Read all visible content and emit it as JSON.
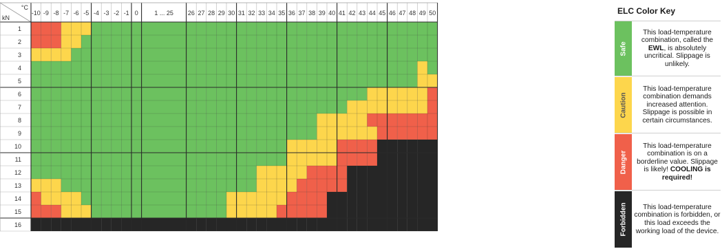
{
  "chart_data": {
    "type": "heatmap",
    "corner_top": "°C",
    "corner_bottom": "kN",
    "x_labels": [
      "-10",
      "-9",
      "-8",
      "-7",
      "-6",
      "-5",
      "-4",
      "-3",
      "-2",
      "-1",
      "0",
      "1 ... 25",
      "26",
      "27",
      "28",
      "29",
      "30",
      "31",
      "32",
      "33",
      "34",
      "35",
      "36",
      "37",
      "38",
      "39",
      "40",
      "41",
      "42",
      "43",
      "44",
      "45",
      "46",
      "47",
      "48",
      "49",
      "50"
    ],
    "y_labels": [
      "1",
      "2",
      "3",
      "4",
      "5",
      "6",
      "7",
      "8",
      "9",
      "10",
      "11",
      "12",
      "13",
      "14",
      "15",
      "16"
    ],
    "legend_codes": {
      "S": "Safe",
      "C": "Caution",
      "D": "Danger",
      "F": "Forbidden"
    },
    "rows": [
      [
        "D",
        "D",
        "D",
        "C",
        "C",
        "C",
        "S",
        "S",
        "S",
        "S",
        "S",
        "S",
        "S",
        "S",
        "S",
        "S",
        "S",
        "S",
        "S",
        "S",
        "S",
        "S",
        "S",
        "S",
        "S",
        "S",
        "S",
        "S",
        "S",
        "S",
        "S",
        "S",
        "S",
        "S",
        "S",
        "S",
        "S"
      ],
      [
        "D",
        "D",
        "D",
        "C",
        "C",
        "S",
        "S",
        "S",
        "S",
        "S",
        "S",
        "S",
        "S",
        "S",
        "S",
        "S",
        "S",
        "S",
        "S",
        "S",
        "S",
        "S",
        "S",
        "S",
        "S",
        "S",
        "S",
        "S",
        "S",
        "S",
        "S",
        "S",
        "S",
        "S",
        "S",
        "S",
        "S"
      ],
      [
        "C",
        "C",
        "C",
        "C",
        "S",
        "S",
        "S",
        "S",
        "S",
        "S",
        "S",
        "S",
        "S",
        "S",
        "S",
        "S",
        "S",
        "S",
        "S",
        "S",
        "S",
        "S",
        "S",
        "S",
        "S",
        "S",
        "S",
        "S",
        "S",
        "S",
        "S",
        "S",
        "S",
        "S",
        "S",
        "S",
        "S"
      ],
      [
        "S",
        "S",
        "S",
        "S",
        "S",
        "S",
        "S",
        "S",
        "S",
        "S",
        "S",
        "S",
        "S",
        "S",
        "S",
        "S",
        "S",
        "S",
        "S",
        "S",
        "S",
        "S",
        "S",
        "S",
        "S",
        "S",
        "S",
        "S",
        "S",
        "S",
        "S",
        "S",
        "S",
        "S",
        "S",
        "C",
        "S"
      ],
      [
        "S",
        "S",
        "S",
        "S",
        "S",
        "S",
        "S",
        "S",
        "S",
        "S",
        "S",
        "S",
        "S",
        "S",
        "S",
        "S",
        "S",
        "S",
        "S",
        "S",
        "S",
        "S",
        "S",
        "S",
        "S",
        "S",
        "S",
        "S",
        "S",
        "S",
        "S",
        "S",
        "S",
        "S",
        "S",
        "C",
        "C"
      ],
      [
        "S",
        "S",
        "S",
        "S",
        "S",
        "S",
        "S",
        "S",
        "S",
        "S",
        "S",
        "S",
        "S",
        "S",
        "S",
        "S",
        "S",
        "S",
        "S",
        "S",
        "S",
        "S",
        "S",
        "S",
        "S",
        "S",
        "S",
        "S",
        "S",
        "S",
        "C",
        "C",
        "C",
        "C",
        "C",
        "C",
        "D"
      ],
      [
        "S",
        "S",
        "S",
        "S",
        "S",
        "S",
        "S",
        "S",
        "S",
        "S",
        "S",
        "S",
        "S",
        "S",
        "S",
        "S",
        "S",
        "S",
        "S",
        "S",
        "S",
        "S",
        "S",
        "S",
        "S",
        "S",
        "S",
        "S",
        "C",
        "C",
        "C",
        "C",
        "C",
        "C",
        "C",
        "C",
        "D"
      ],
      [
        "S",
        "S",
        "S",
        "S",
        "S",
        "S",
        "S",
        "S",
        "S",
        "S",
        "S",
        "S",
        "S",
        "S",
        "S",
        "S",
        "S",
        "S",
        "S",
        "S",
        "S",
        "S",
        "S",
        "S",
        "S",
        "C",
        "C",
        "C",
        "C",
        "C",
        "D",
        "D",
        "D",
        "D",
        "D",
        "D",
        "D"
      ],
      [
        "S",
        "S",
        "S",
        "S",
        "S",
        "S",
        "S",
        "S",
        "S",
        "S",
        "S",
        "S",
        "S",
        "S",
        "S",
        "S",
        "S",
        "S",
        "S",
        "S",
        "S",
        "S",
        "S",
        "S",
        "S",
        "C",
        "C",
        "C",
        "C",
        "C",
        "C",
        "D",
        "D",
        "D",
        "D",
        "D",
        "D"
      ],
      [
        "S",
        "S",
        "S",
        "S",
        "S",
        "S",
        "S",
        "S",
        "S",
        "S",
        "S",
        "S",
        "S",
        "S",
        "S",
        "S",
        "S",
        "S",
        "S",
        "S",
        "S",
        "S",
        "C",
        "C",
        "C",
        "C",
        "C",
        "D",
        "D",
        "D",
        "D",
        "F",
        "F",
        "F",
        "F",
        "F",
        "F"
      ],
      [
        "S",
        "S",
        "S",
        "S",
        "S",
        "S",
        "S",
        "S",
        "S",
        "S",
        "S",
        "S",
        "S",
        "S",
        "S",
        "S",
        "S",
        "S",
        "S",
        "S",
        "S",
        "S",
        "C",
        "C",
        "C",
        "C",
        "C",
        "D",
        "D",
        "D",
        "D",
        "F",
        "F",
        "F",
        "F",
        "F",
        "F"
      ],
      [
        "S",
        "S",
        "S",
        "S",
        "S",
        "S",
        "S",
        "S",
        "S",
        "S",
        "S",
        "S",
        "S",
        "S",
        "S",
        "S",
        "S",
        "S",
        "S",
        "C",
        "C",
        "C",
        "C",
        "C",
        "D",
        "D",
        "D",
        "D",
        "F",
        "F",
        "F",
        "F",
        "F",
        "F",
        "F",
        "F",
        "F"
      ],
      [
        "C",
        "C",
        "C",
        "S",
        "S",
        "S",
        "S",
        "S",
        "S",
        "S",
        "S",
        "S",
        "S",
        "S",
        "S",
        "S",
        "S",
        "S",
        "S",
        "C",
        "C",
        "C",
        "C",
        "D",
        "D",
        "D",
        "D",
        "D",
        "F",
        "F",
        "F",
        "F",
        "F",
        "F",
        "F",
        "F",
        "F"
      ],
      [
        "D",
        "C",
        "C",
        "C",
        "C",
        "S",
        "S",
        "S",
        "S",
        "S",
        "S",
        "S",
        "S",
        "S",
        "S",
        "S",
        "C",
        "C",
        "C",
        "C",
        "C",
        "C",
        "D",
        "D",
        "D",
        "D",
        "F",
        "F",
        "F",
        "F",
        "F",
        "F",
        "F",
        "F",
        "F",
        "F",
        "F"
      ],
      [
        "D",
        "D",
        "D",
        "C",
        "C",
        "C",
        "S",
        "S",
        "S",
        "S",
        "S",
        "S",
        "S",
        "S",
        "S",
        "S",
        "C",
        "C",
        "C",
        "C",
        "C",
        "D",
        "D",
        "D",
        "D",
        "D",
        "F",
        "F",
        "F",
        "F",
        "F",
        "F",
        "F",
        "F",
        "F",
        "F",
        "F"
      ],
      [
        "F",
        "F",
        "F",
        "F",
        "F",
        "F",
        "F",
        "F",
        "F",
        "F",
        "F",
        "F",
        "F",
        "F",
        "F",
        "F",
        "F",
        "F",
        "F",
        "F",
        "F",
        "F",
        "F",
        "F",
        "F",
        "F",
        "F",
        "F",
        "F",
        "F",
        "F",
        "F",
        "F",
        "F",
        "F",
        "F",
        "F"
      ]
    ],
    "colors": {
      "S": "#6cc15f",
      "C": "#fdd64c",
      "D": "#f0604a",
      "F": "#262626"
    }
  },
  "key": {
    "title": "ELC Color Key",
    "items": [
      {
        "label": "Safe",
        "color": "#6cc15f",
        "label_color": "#ffffff",
        "text_before": "This load-temperature combination, called the ",
        "text_bold": "EWL",
        "text_after": ", is absolutely uncritical. Slippage is unlikely."
      },
      {
        "label": "Caution",
        "color": "#fdd64c",
        "label_color": "#555555",
        "text_before": "This load-temperature combination demands increased attention. Slippage is possible in certain circumstances.",
        "text_bold": "",
        "text_after": ""
      },
      {
        "label": "Danger",
        "color": "#f0604a",
        "label_color": "#ffffff",
        "text_before": "This load-temperature combination is on a borderline value. Slippage is likely! ",
        "text_bold": "COOLING is required!",
        "text_after": ""
      },
      {
        "label": "Forbidden",
        "color": "#262626",
        "label_color": "#ffffff",
        "text_before": "This load-temperature combination is forbidden, or this load exceeds the working load of the device.",
        "text_bold": "",
        "text_after": ""
      }
    ]
  }
}
